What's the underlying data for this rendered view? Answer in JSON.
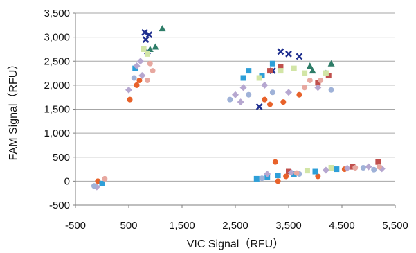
{
  "chart_data": {
    "type": "scatter",
    "title": "",
    "xlabel": "VIC Signal（RFU）",
    "ylabel": "FAM Signal（RFU）",
    "xlim": [
      -500,
      5500
    ],
    "ylim": [
      -500,
      3500
    ],
    "x_ticks": [
      -500,
      500,
      1500,
      2500,
      3500,
      4500,
      5500
    ],
    "x_tick_labels": [
      "-500",
      "500",
      "1,500",
      "2,500",
      "3,500",
      "4,500",
      "5,500"
    ],
    "y_ticks": [
      -500,
      0,
      500,
      1000,
      1500,
      2000,
      2500,
      3000,
      3500
    ],
    "y_tick_labels": [
      "-500",
      "0",
      "500",
      "1,000",
      "1,500",
      "2,000",
      "2,500",
      "3,000",
      "3,500"
    ],
    "grid": "horizontal",
    "legend": "none",
    "series": [
      {
        "color": "#1f2f8f",
        "marker": "x",
        "points": [
          [
            800,
            3100
          ],
          [
            880,
            3050
          ],
          [
            820,
            2950
          ],
          [
            3350,
            2700
          ],
          [
            3500,
            2650
          ],
          [
            3200,
            2300
          ],
          [
            2950,
            1550
          ],
          [
            3700,
            2600
          ],
          [
            850,
            2700
          ]
        ]
      },
      {
        "color": "#2e7d68",
        "marker": "triangle",
        "points": [
          [
            1130,
            3180
          ],
          [
            4300,
            2450
          ],
          [
            3900,
            2400
          ],
          [
            1000,
            2800
          ],
          [
            900,
            2750
          ],
          [
            3950,
            2300
          ],
          [
            4200,
            2250
          ]
        ]
      },
      {
        "color": "#c0504d",
        "marker": "square",
        "points": [
          [
            5180,
            400
          ],
          [
            4250,
            2200
          ],
          [
            4050,
            2050
          ],
          [
            3350,
            2380
          ],
          [
            3500,
            200
          ],
          [
            4700,
            300
          ],
          [
            3150,
            2300
          ]
        ]
      },
      {
        "color": "#e8622a",
        "marker": "circle",
        "points": [
          [
            520,
            1700
          ],
          [
            650,
            2000
          ],
          [
            3150,
            1600
          ],
          [
            3400,
            1650
          ],
          [
            3700,
            1800
          ],
          [
            3050,
            1700
          ],
          [
            3250,
            400
          ],
          [
            3300,
            0
          ],
          [
            3450,
            100
          ],
          [
            4050,
            100
          ],
          [
            700,
            2100
          ],
          [
            4550,
            250
          ],
          [
            -80,
            0
          ]
        ]
      },
      {
        "color": "#2e9fd8",
        "marker": "square",
        "points": [
          [
            2900,
            50
          ],
          [
            3100,
            80
          ],
          [
            3300,
            120
          ],
          [
            3600,
            150
          ],
          [
            4000,
            200
          ],
          [
            4400,
            250
          ],
          [
            620,
            2350
          ],
          [
            2650,
            2150
          ],
          [
            2750,
            2300
          ],
          [
            3000,
            2200
          ],
          [
            0,
            -50
          ],
          [
            3200,
            2450
          ]
        ]
      },
      {
        "color": "#d2e5a6",
        "marker": "square",
        "points": [
          [
            3350,
            2300
          ],
          [
            3600,
            2350
          ],
          [
            4200,
            2250
          ],
          [
            3850,
            220
          ],
          [
            4300,
            280
          ],
          [
            780,
            2750
          ],
          [
            850,
            2650
          ],
          [
            2950,
            2150
          ],
          [
            3800,
            2250
          ]
        ]
      },
      {
        "color": "#b6a7d0",
        "marker": "diamond",
        "points": [
          [
            500,
            1900
          ],
          [
            650,
            2400
          ],
          [
            720,
            2500
          ],
          [
            2500,
            1800
          ],
          [
            2600,
            1650
          ],
          [
            2650,
            1950
          ],
          [
            3050,
            2000
          ],
          [
            3500,
            1850
          ],
          [
            4050,
            1950
          ],
          [
            3100,
            150
          ],
          [
            3550,
            180
          ],
          [
            4200,
            230
          ],
          [
            4600,
            270
          ],
          [
            5000,
            300
          ],
          [
            5250,
            260
          ],
          [
            -100,
            -120
          ],
          [
            750,
            2200
          ]
        ]
      },
      {
        "color": "#9fb2d8",
        "marker": "circle",
        "points": [
          [
            2750,
            1800
          ],
          [
            3200,
            1850
          ],
          [
            4300,
            1900
          ],
          [
            3000,
            60
          ],
          [
            3700,
            150
          ],
          [
            4900,
            280
          ],
          [
            5100,
            240
          ],
          [
            600,
            2150
          ],
          [
            2400,
            1700
          ],
          [
            -150,
            -100
          ]
        ]
      },
      {
        "color": "#e7a8a0",
        "marker": "circle",
        "points": [
          [
            900,
            2450
          ],
          [
            950,
            2300
          ],
          [
            3800,
            1950
          ],
          [
            3900,
            2100
          ],
          [
            4100,
            2100
          ],
          [
            4750,
            280
          ],
          [
            5200,
            300
          ],
          [
            3650,
            170
          ],
          [
            50,
            50
          ],
          [
            850,
            2100
          ]
        ]
      }
    ]
  }
}
